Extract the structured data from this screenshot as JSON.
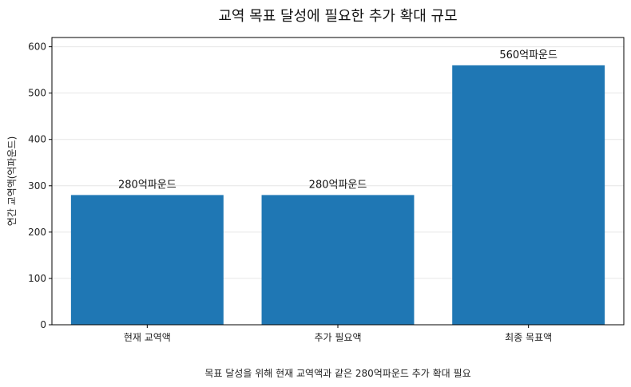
{
  "chart_data": {
    "type": "bar",
    "title": "교역 목표 달성에 필요한 추가 확대 규모",
    "xlabel": "",
    "ylabel": "연간 교역액(억파운드)",
    "categories": [
      "현재 교역액",
      "추가 필요액",
      "최종 목표액"
    ],
    "values": [
      280,
      280,
      560
    ],
    "data_labels": [
      "280억파운드",
      "280억파운드",
      "560억파운드"
    ],
    "ylim": [
      0,
      620
    ],
    "yticks": [
      0,
      100,
      200,
      300,
      400,
      500,
      600
    ],
    "grid": "y",
    "legend": "none",
    "bar_color": "#1f77b4",
    "footnote": "목표 달성을 위해 현재 교역액과 같은 280억파운드 추가 확대 필요"
  }
}
